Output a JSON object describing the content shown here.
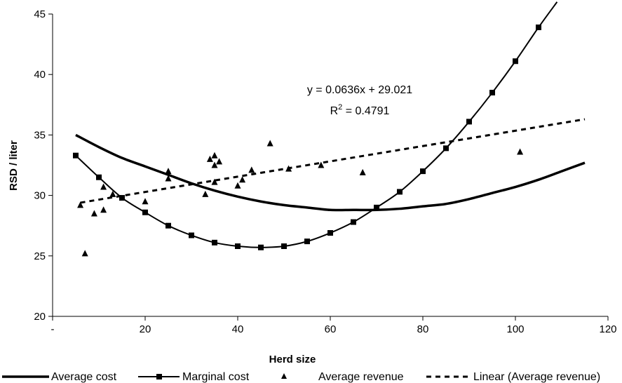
{
  "chart_data": {
    "type": "scatter",
    "xlabel": "Herd size",
    "ylabel": "RSD / liter",
    "xlim": [
      0,
      120
    ],
    "ylim": [
      20,
      45
    ],
    "x_ticks": [
      {
        "value": 0,
        "label": "-"
      },
      {
        "value": 20,
        "label": "20"
      },
      {
        "value": 40,
        "label": "40"
      },
      {
        "value": 60,
        "label": "60"
      },
      {
        "value": 80,
        "label": "80"
      },
      {
        "value": 100,
        "label": "100"
      },
      {
        "value": 120,
        "label": "120"
      }
    ],
    "y_ticks": [
      {
        "value": 20,
        "label": "20"
      },
      {
        "value": 25,
        "label": "25"
      },
      {
        "value": 30,
        "label": "30"
      },
      {
        "value": 35,
        "label": "35"
      },
      {
        "value": 40,
        "label": "40"
      },
      {
        "value": 45,
        "label": "45"
      }
    ],
    "grid": false,
    "legend_position": "bottom",
    "series": [
      {
        "name": "Average cost",
        "kind": "line",
        "style": "solid-thick",
        "color": "#000000",
        "x": [
          5,
          10,
          15,
          20,
          25,
          30,
          35,
          40,
          45,
          50,
          55,
          60,
          65,
          70,
          75,
          80,
          85,
          90,
          95,
          100,
          105,
          110,
          115
        ],
        "y": [
          35.0,
          34.0,
          33.1,
          32.4,
          31.7,
          31.0,
          30.4,
          29.9,
          29.5,
          29.2,
          29.0,
          28.8,
          28.8,
          28.8,
          28.9,
          29.1,
          29.3,
          29.7,
          30.2,
          30.7,
          31.3,
          32.0,
          32.7
        ]
      },
      {
        "name": "Marginal cost",
        "kind": "line-markers",
        "marker": "square",
        "color": "#000000",
        "x": [
          5,
          10,
          15,
          20,
          25,
          30,
          35,
          40,
          45,
          50,
          55,
          60,
          65,
          70,
          75,
          80,
          85,
          90,
          95,
          100,
          105
        ],
        "y": [
          33.3,
          31.5,
          29.8,
          28.6,
          27.5,
          26.7,
          26.1,
          25.8,
          25.7,
          25.8,
          26.2,
          26.9,
          27.8,
          29.0,
          30.3,
          32.0,
          33.9,
          36.1,
          38.5,
          41.1,
          43.9
        ],
        "extend_to": {
          "x": 109,
          "y": 46
        }
      },
      {
        "name": "Average revenue",
        "kind": "markers",
        "marker": "triangle",
        "color": "#000000",
        "x": [
          6,
          7,
          9,
          11,
          11,
          13,
          20,
          25,
          25,
          33,
          34,
          35,
          35,
          35,
          36,
          40,
          41,
          43,
          47,
          51,
          58,
          67,
          101
        ],
        "y": [
          29.2,
          25.2,
          28.5,
          28.8,
          30.7,
          30.1,
          29.5,
          32.0,
          31.4,
          30.1,
          33.0,
          33.3,
          32.5,
          31.1,
          32.8,
          30.8,
          31.3,
          32.1,
          34.3,
          32.2,
          32.5,
          31.9,
          33.6
        ]
      },
      {
        "name": "Linear (Average revenue)",
        "kind": "line",
        "style": "dashed",
        "color": "#000000",
        "x": [
          6,
          115
        ],
        "y": [
          29.4,
          36.3
        ]
      }
    ],
    "annotations": [
      {
        "text": "y = 0.0636x + 29.021"
      },
      {
        "text_prefix": "R",
        "superscript": "2",
        "text_suffix": " = 0.4791"
      }
    ]
  }
}
